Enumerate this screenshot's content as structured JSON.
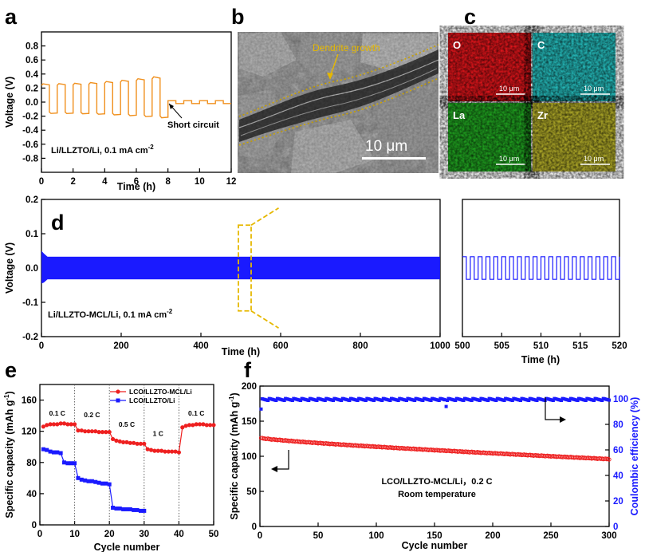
{
  "panel_labels": {
    "a": "a",
    "b": "b",
    "c": "c",
    "d": "d",
    "e": "e",
    "f": "f"
  },
  "colors": {
    "orange": "#f0901e",
    "blue": "#1a1aff",
    "red": "#ee2020",
    "gold": "#e6b800",
    "axis_right": "#1a1aff"
  },
  "panel_b": {
    "annotation": "Dendrite growth",
    "scale_bar": "10 μm"
  },
  "panel_c": {
    "maps": [
      {
        "element": "O",
        "color": "#e8161c",
        "scale": "10 μm"
      },
      {
        "element": "C",
        "color": "#27c4c4",
        "scale": "10 μm"
      },
      {
        "element": "La",
        "color": "#22aa22",
        "scale": "10 μm"
      },
      {
        "element": "Zr",
        "color": "#b8b22a",
        "scale": "10 μm"
      }
    ]
  },
  "chart_data": [
    {
      "id": "a",
      "type": "line",
      "xlabel": "Time (h)",
      "ylabel": "Voltage (V)",
      "xlim": [
        0,
        12
      ],
      "ylim": [
        -1.0,
        1.0
      ],
      "xticks": [
        "0",
        "2",
        "4",
        "6",
        "8",
        "10",
        "12"
      ],
      "yticks": [
        "-0.8",
        "-0.6",
        "-0.4",
        "-0.2",
        "0.0",
        "0.2",
        "0.4",
        "0.6",
        "0.8"
      ],
      "annotations": [
        "Short circuit",
        "Li/LLZTO/Li, 0.1 mA cm"
      ],
      "superscript": "-2",
      "cycles_before_short": 8,
      "peak_start": 0.26,
      "peak_end": 0.36,
      "short_time": 8.0,
      "short_amplitude": 0.02,
      "series": [
        {
          "name": "",
          "color": "#f0901e"
        }
      ]
    },
    {
      "id": "d",
      "type": "line",
      "xlabel": "Time (h)",
      "ylabel": "Voltage (V)",
      "xlim": [
        0,
        1000
      ],
      "ylim": [
        -0.2,
        0.2
      ],
      "xticks": [
        "0",
        "200",
        "400",
        "600",
        "800",
        "1000"
      ],
      "yticks": [
        "-0.2",
        "-0.1",
        "0.0",
        "0.1",
        "0.2"
      ],
      "annotations": [
        "Li/LLZTO-MCL/Li, 0.1 mA cm"
      ],
      "superscript": "-2",
      "amplitude": 0.033,
      "initial_peak": 0.05,
      "zoom_window": [
        500,
        520
      ],
      "series": [
        {
          "name": "",
          "color": "#1a1aff"
        }
      ]
    },
    {
      "id": "d_inset",
      "type": "line",
      "xlabel": "Time (h)",
      "xlim": [
        500,
        520
      ],
      "ylim": [
        -0.2,
        0.2
      ],
      "xticks": [
        "500",
        "505",
        "510",
        "515",
        "520"
      ],
      "amplitude": 0.033,
      "period_h": 1,
      "series": [
        {
          "name": "",
          "color": "#1a1aff"
        }
      ]
    },
    {
      "id": "e",
      "type": "scatter",
      "xlabel": "Cycle number",
      "ylabel": "Specific capacity (mAh g",
      "ylabel_sup": "-1",
      "xlim": [
        0,
        50
      ],
      "ylim": [
        0,
        180
      ],
      "xticks": [
        "0",
        "10",
        "20",
        "30",
        "40",
        "50"
      ],
      "yticks": [
        "0",
        "40",
        "80",
        "120",
        "160"
      ],
      "rate_labels": [
        "0.1 C",
        "0.2 C",
        "0.5 C",
        "1 C",
        "0.1 C"
      ],
      "series": [
        {
          "name": "LCO/LLZTO-MCL/Li",
          "color": "#ee2020",
          "marker": "circle",
          "values": [
            126,
            128,
            129,
            129,
            129,
            130,
            130,
            129,
            129,
            129,
            121,
            121,
            120,
            120,
            120,
            120,
            119,
            119,
            119,
            119,
            110,
            108,
            107,
            106,
            106,
            105,
            105,
            104,
            104,
            104,
            97,
            96,
            95,
            95,
            95,
            94,
            94,
            94,
            94,
            93,
            125,
            127,
            128,
            128,
            129,
            129,
            129,
            128,
            128,
            128
          ]
        },
        {
          "name": "LCO/LLZTO/Li",
          "color": "#1a1aff",
          "marker": "square",
          "values": [
            97,
            96,
            94,
            93,
            93,
            92,
            80,
            79,
            79,
            79,
            60,
            58,
            57,
            56,
            56,
            55,
            54,
            53,
            53,
            52,
            22,
            21,
            21,
            20,
            20,
            20,
            19,
            19,
            18,
            18
          ]
        }
      ]
    },
    {
      "id": "f",
      "type": "scatter",
      "xlabel": "Cycle number",
      "ylabel": "Specific capacity (mAh g",
      "ylabel_sup": "-1",
      "ylabel_right": "Coulombic efficiency (%)",
      "xlim": [
        0,
        300
      ],
      "ylim": [
        0,
        200
      ],
      "ylim_right": [
        0,
        110
      ],
      "xticks": [
        "0",
        "50",
        "100",
        "150",
        "200",
        "250",
        "300"
      ],
      "yticks": [
        "0",
        "50",
        "100",
        "150",
        "200"
      ],
      "yticks_right": [
        "0",
        "20",
        "40",
        "60",
        "80",
        "100"
      ],
      "annotations": [
        "LCO/LLZTO-MCL/Li，0.2 C",
        "Room temperature"
      ],
      "capacity_start": 126,
      "capacity_end": 96,
      "efficiency_mean": 99.5,
      "series": [
        {
          "name": "",
          "color": "#ee2020",
          "axis": "left"
        },
        {
          "name": "",
          "color": "#1a1aff",
          "axis": "right"
        }
      ]
    }
  ]
}
